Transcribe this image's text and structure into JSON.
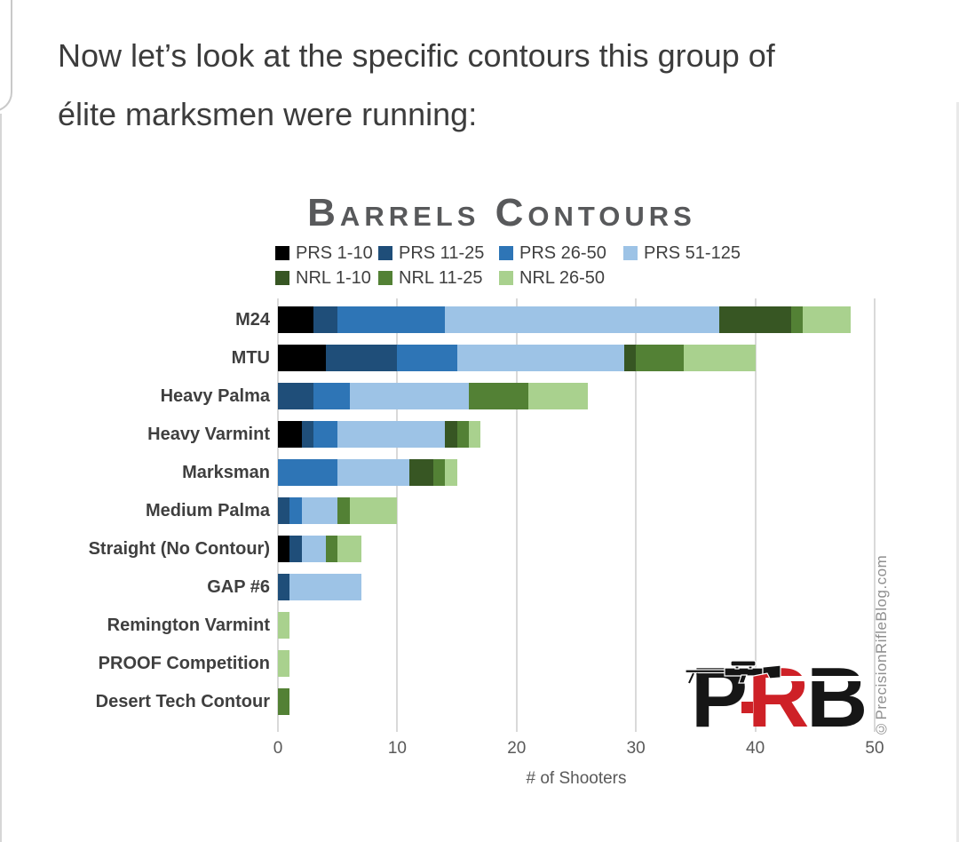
{
  "page": {
    "heading_lines": [
      "Now let’s look at the specific contours this group of",
      "élite marksmen were running:"
    ]
  },
  "chart": {
    "watermark": "©PrecisionRifleBlog.com",
    "logo": {
      "p": "P",
      "r": "R",
      "b": "B"
    }
  },
  "chart_data": {
    "type": "bar",
    "orientation": "horizontal",
    "stacked": true,
    "title": "Barrels Contours",
    "xlabel": "# of Shooters",
    "xlim": [
      0,
      50
    ],
    "xticks": [
      0,
      10,
      20,
      30,
      40,
      50
    ],
    "grid": true,
    "legend_position": "top",
    "categories": [
      "M24",
      "MTU",
      "Heavy Palma",
      "Heavy Varmint",
      "Marksman",
      "Medium Palma",
      "Straight (No Contour)",
      "GAP #6",
      "Remington Varmint",
      "PROOF Competition",
      "Desert Tech Contour"
    ],
    "series": [
      {
        "name": "PRS 1-10",
        "color": "#000000",
        "values": [
          3,
          4,
          0,
          2,
          0,
          0,
          1,
          0,
          0,
          0,
          0
        ]
      },
      {
        "name": "PRS 11-25",
        "color": "#1f4e79",
        "values": [
          2,
          6,
          3,
          1,
          0,
          1,
          1,
          1,
          0,
          0,
          0
        ]
      },
      {
        "name": "PRS 26-50",
        "color": "#2e75b6",
        "values": [
          9,
          5,
          3,
          2,
          5,
          1,
          0,
          0,
          0,
          0,
          0
        ]
      },
      {
        "name": "PRS 51-125",
        "color": "#9dc3e6",
        "values": [
          23,
          14,
          10,
          9,
          6,
          3,
          2,
          6,
          0,
          0,
          0
        ]
      },
      {
        "name": "NRL 1-10",
        "color": "#375623",
        "values": [
          6,
          1,
          0,
          1,
          2,
          0,
          0,
          0,
          0,
          0,
          0
        ]
      },
      {
        "name": "NRL 11-25",
        "color": "#538135",
        "values": [
          1,
          4,
          5,
          1,
          1,
          1,
          1,
          0,
          0,
          0,
          1
        ]
      },
      {
        "name": "NRL 26-50",
        "color": "#a9d18e",
        "values": [
          4,
          6,
          5,
          1,
          1,
          4,
          2,
          0,
          1,
          1,
          0
        ]
      }
    ],
    "totals": [
      48,
      40,
      26,
      17,
      15,
      10,
      7,
      7,
      1,
      1,
      1
    ],
    "legend_rows": [
      [
        "PRS 1-10",
        "PRS 11-25",
        "PRS 26-50",
        "PRS 51-125"
      ],
      [
        "NRL 1-10",
        "NRL 11-25",
        "NRL 26-50"
      ]
    ]
  }
}
